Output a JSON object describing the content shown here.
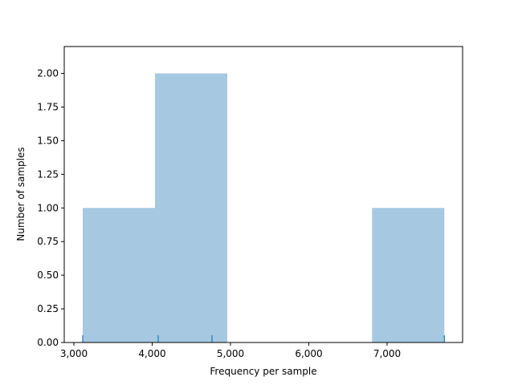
{
  "chart_data": {
    "type": "histogram",
    "xlabel": "Frequency per sample",
    "ylabel": "Number of samples",
    "bins": [
      3113,
      4036,
      4959,
      5882,
      6808,
      7731
    ],
    "values": [
      1,
      2,
      0,
      0,
      1
    ],
    "color": "#a6c8e0",
    "rug": [
      3113,
      4077,
      4764,
      7731
    ],
    "rug_color": "#1f77b4",
    "xlim": [
      2877,
      7964
    ],
    "ylim": [
      0,
      2.2
    ],
    "xticks": [
      {
        "value": 3000,
        "label": "3,000"
      },
      {
        "value": 4000,
        "label": "4,000"
      },
      {
        "value": 5000,
        "label": "5,000"
      },
      {
        "value": 6000,
        "label": "6,000"
      },
      {
        "value": 7000,
        "label": "7,000"
      }
    ],
    "yticks": [
      {
        "value": 0,
        "label": "0.00"
      },
      {
        "value": 0.25,
        "label": "0.25"
      },
      {
        "value": 0.5,
        "label": "0.50"
      },
      {
        "value": 0.75,
        "label": "0.75"
      },
      {
        "value": 1,
        "label": "1.00"
      },
      {
        "value": 1.25,
        "label": "1.25"
      },
      {
        "value": 1.5,
        "label": "1.50"
      },
      {
        "value": 1.75,
        "label": "1.75"
      },
      {
        "value": 2,
        "label": "2.00"
      }
    ]
  }
}
